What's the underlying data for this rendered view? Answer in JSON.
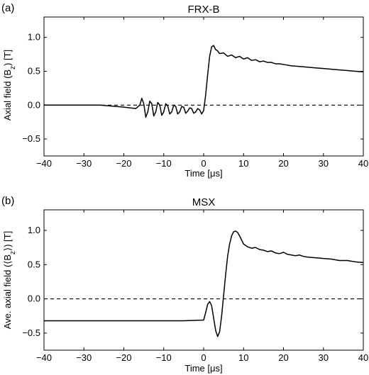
{
  "colors": {
    "series": "#000000",
    "frame": "#000000",
    "background": "#ffffff"
  },
  "chart_data": [
    {
      "type": "line",
      "panel_label": "(a)",
      "title": "FRX-B",
      "xlabel": "Time [μs]",
      "ylabel": "Axial field (B",
      "ylabel_sub": "z",
      "ylabel_tail": ") [T]",
      "xlim": [
        -40,
        40
      ],
      "ylim": [
        -0.75,
        1.3
      ],
      "xticks": [
        -40,
        -30,
        -20,
        -10,
        0,
        10,
        20,
        30,
        40
      ],
      "yticks": [
        -0.5,
        0.0,
        0.5,
        1.0
      ],
      "ytick_labels": [
        "−0.5",
        "0.0",
        "0.5",
        "1.0"
      ],
      "xtick_labels": [
        "−40",
        "−30",
        "−20",
        "−10",
        "0",
        "10",
        "20",
        "30",
        "40"
      ],
      "reference_line": {
        "y": 0,
        "style": "dashed"
      },
      "series": [
        {
          "x": [
            -40,
            -26,
            -20,
            -17,
            -16,
            -15.5,
            -15,
            -14.5,
            -14,
            -13.5,
            -13,
            -12.5,
            -12,
            -11.5,
            -11,
            -10.5,
            -10,
            -9.5,
            -9,
            -8.5,
            -8,
            -7.5,
            -7,
            -6.5,
            -6,
            -5.5,
            -5,
            -4.5,
            -4,
            -3.5,
            -3,
            -2.5,
            -2,
            -1.5,
            -1,
            -0.5,
            0,
            0.5,
            1,
            1.5,
            2,
            2.5,
            3,
            3.5,
            4,
            5,
            6,
            7,
            8,
            9,
            10,
            11,
            12,
            13,
            14,
            15,
            16,
            17,
            18,
            19,
            20,
            22,
            24,
            26,
            28,
            30,
            32,
            34,
            36,
            38,
            40
          ],
          "y": [
            0.0,
            0.0,
            -0.03,
            -0.05,
            0.0,
            0.1,
            0.02,
            -0.18,
            -0.1,
            0.06,
            0.02,
            -0.16,
            -0.1,
            0.04,
            0.0,
            -0.15,
            -0.1,
            0.02,
            -0.01,
            -0.13,
            -0.1,
            0.0,
            -0.02,
            -0.13,
            -0.1,
            -0.02,
            -0.03,
            -0.12,
            -0.09,
            -0.04,
            -0.05,
            -0.12,
            -0.1,
            -0.05,
            -0.07,
            -0.13,
            -0.08,
            0.15,
            0.45,
            0.72,
            0.86,
            0.88,
            0.82,
            0.8,
            0.76,
            0.77,
            0.72,
            0.74,
            0.7,
            0.72,
            0.68,
            0.7,
            0.66,
            0.67,
            0.64,
            0.65,
            0.63,
            0.63,
            0.61,
            0.61,
            0.6,
            0.58,
            0.57,
            0.56,
            0.55,
            0.54,
            0.53,
            0.52,
            0.51,
            0.5,
            0.49
          ]
        }
      ]
    },
    {
      "type": "line",
      "panel_label": "(b)",
      "title": "MSX",
      "xlabel": "Time [μs]",
      "ylabel": "Ave. axial field (⟨B",
      "ylabel_sub": "z",
      "ylabel_tail": "⟩) [T]",
      "xlim": [
        -40,
        40
      ],
      "ylim": [
        -0.75,
        1.3
      ],
      "xticks": [
        -40,
        -30,
        -20,
        -10,
        0,
        10,
        20,
        30,
        40
      ],
      "yticks": [
        -0.5,
        0.0,
        0.5,
        1.0
      ],
      "ytick_labels": [
        "−0.5",
        "0.0",
        "0.5",
        "1.0"
      ],
      "xtick_labels": [
        "−40",
        "−30",
        "−20",
        "−10",
        "0",
        "10",
        "20",
        "30",
        "40"
      ],
      "reference_line": {
        "y": 0,
        "style": "dashed"
      },
      "series": [
        {
          "x": [
            -40,
            -30,
            -20,
            -10,
            -5,
            0,
            0.5,
            1,
            1.5,
            2,
            2.5,
            3,
            3.5,
            4,
            4.5,
            5,
            5.5,
            6,
            6.5,
            7,
            7.5,
            8,
            8.5,
            9,
            9.5,
            10,
            11,
            12,
            13,
            14,
            15,
            16,
            17,
            18,
            19,
            20,
            21,
            22,
            23,
            24,
            25,
            26,
            28,
            30,
            32,
            34,
            36,
            38,
            40
          ],
          "y": [
            -0.32,
            -0.32,
            -0.32,
            -0.32,
            -0.32,
            -0.31,
            -0.2,
            -0.08,
            -0.04,
            -0.1,
            -0.28,
            -0.46,
            -0.55,
            -0.48,
            -0.25,
            0.05,
            0.35,
            0.62,
            0.8,
            0.92,
            0.98,
            0.99,
            0.97,
            0.92,
            0.86,
            0.8,
            0.76,
            0.74,
            0.75,
            0.72,
            0.71,
            0.69,
            0.7,
            0.67,
            0.66,
            0.68,
            0.65,
            0.64,
            0.63,
            0.64,
            0.62,
            0.61,
            0.6,
            0.59,
            0.58,
            0.56,
            0.56,
            0.54,
            0.53
          ]
        }
      ]
    }
  ]
}
